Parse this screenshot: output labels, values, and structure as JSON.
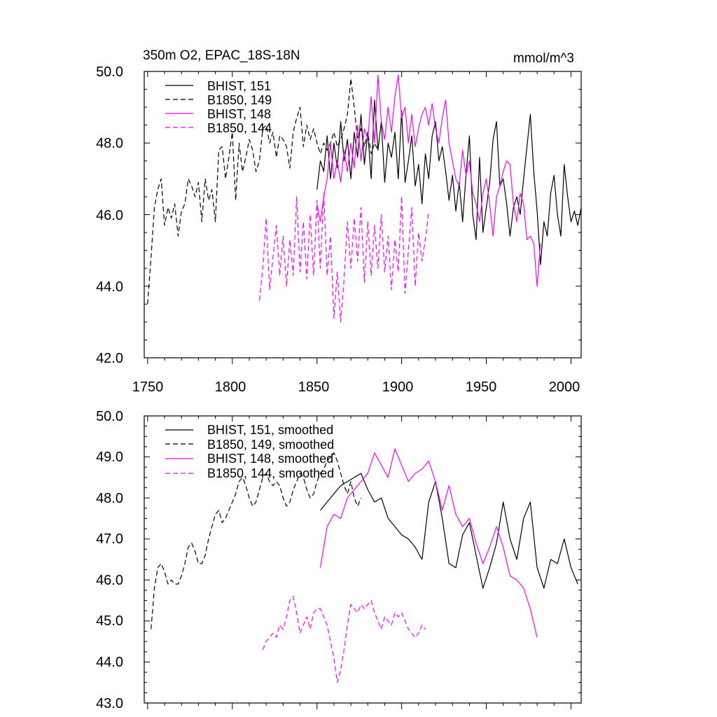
{
  "charts": [
    {
      "id": "top",
      "title_left": "350m O2, EPAC_18S-18N",
      "title_right": "mmol/m^3",
      "yticks": [
        "42.0",
        "44.0",
        "46.0",
        "48.0",
        "50.0"
      ],
      "xticks": [
        "1750",
        "1800",
        "1850",
        "1900",
        "1950",
        "2000"
      ],
      "legend": [
        "BHIST, 151",
        "B1850, 149",
        "BHIST, 148",
        "B1850, 144"
      ]
    },
    {
      "id": "bottom",
      "title_left": "",
      "title_right": "",
      "yticks": [
        "43.0",
        "44.0",
        "45.0",
        "46.0",
        "47.0",
        "48.0",
        "49.0",
        "50.0"
      ],
      "xticks": [],
      "legend": [
        "BHIST, 151, smoothed",
        "B1850, 149, smoothed",
        "BHIST, 148, smoothed",
        "B1850, 144, smoothed"
      ]
    }
  ],
  "chart_data": [
    {
      "type": "line",
      "title": "350m O2, EPAC_18S-18N",
      "ylabel_units": "mmol/m^3",
      "xlim": [
        1748,
        2006
      ],
      "ylim": [
        42.0,
        50.0
      ],
      "grid": false,
      "legend_position": "top-left",
      "series": [
        {
          "name": "BHIST, 151",
          "color": "#000000",
          "dash": "solid",
          "x": [
            1850,
            1852,
            1854,
            1856,
            1858,
            1860,
            1862,
            1864,
            1866,
            1868,
            1870,
            1872,
            1874,
            1876,
            1878,
            1880,
            1882,
            1884,
            1886,
            1888,
            1890,
            1892,
            1894,
            1896,
            1898,
            1900,
            1902,
            1904,
            1906,
            1908,
            1910,
            1912,
            1914,
            1916,
            1918,
            1920,
            1922,
            1924,
            1926,
            1928,
            1930,
            1932,
            1934,
            1936,
            1938,
            1940,
            1942,
            1944,
            1946,
            1948,
            1950,
            1952,
            1954,
            1956,
            1958,
            1960,
            1962,
            1964,
            1966,
            1968,
            1970,
            1972,
            1974,
            1976,
            1978,
            1980,
            1982,
            1984,
            1986,
            1988,
            1990,
            1992,
            1994,
            1996,
            1998,
            2000,
            2002,
            2004,
            2006
          ],
          "y": [
            46.7,
            47.5,
            47.2,
            48.2,
            47.0,
            48.0,
            47.3,
            48.6,
            47.5,
            48.1,
            47.0,
            48.3,
            47.6,
            48.8,
            47.4,
            48.3,
            47.0,
            49.2,
            47.8,
            48.6,
            46.9,
            48.0,
            47.6,
            48.3,
            47.0,
            48.9,
            46.9,
            47.5,
            48.2,
            46.8,
            47.4,
            46.3,
            47.7,
            47.0,
            48.2,
            48.6,
            47.5,
            47.9,
            47.2,
            46.4,
            47.1,
            46.1,
            46.9,
            45.8,
            47.1,
            48.2,
            46.0,
            45.3,
            47.6,
            45.5,
            46.2,
            46.9,
            48.1,
            48.6,
            46.8,
            47.0,
            46.3,
            45.4,
            46.2,
            46.5,
            46.0,
            47.0,
            47.9,
            48.8,
            47.2,
            46.1,
            44.6,
            45.8,
            45.4,
            46.6,
            47.1,
            46.0,
            45.4,
            47.4,
            46.5,
            45.8,
            46.1,
            45.7,
            46.2
          ]
        },
        {
          "name": "B1850, 149",
          "color": "#000000",
          "dash": "dashed",
          "x": [
            1750,
            1752,
            1754,
            1756,
            1758,
            1760,
            1762,
            1764,
            1766,
            1768,
            1770,
            1772,
            1774,
            1776,
            1778,
            1780,
            1782,
            1784,
            1786,
            1788,
            1790,
            1792,
            1794,
            1796,
            1798,
            1800,
            1802,
            1804,
            1806,
            1808,
            1810,
            1812,
            1814,
            1816,
            1818,
            1820,
            1822,
            1824,
            1826,
            1828,
            1830,
            1832,
            1834,
            1836,
            1838,
            1840,
            1842,
            1844,
            1846,
            1848,
            1850,
            1852,
            1854,
            1856,
            1858,
            1860,
            1862,
            1864,
            1866,
            1868,
            1870,
            1872,
            1874,
            1876,
            1878,
            1880,
            1882,
            1884,
            1886
          ],
          "y": [
            43.5,
            44.8,
            46.2,
            46.7,
            47.0,
            45.7,
            46.2,
            45.9,
            46.3,
            45.4,
            46.1,
            46.3,
            47.0,
            46.8,
            46.5,
            46.9,
            45.8,
            47.0,
            46.4,
            46.7,
            45.8,
            47.8,
            47.9,
            47.0,
            47.6,
            48.3,
            46.4,
            48.0,
            47.2,
            47.6,
            48.1,
            47.8,
            47.2,
            47.5,
            48.4,
            48.5,
            48.0,
            48.3,
            47.6,
            48.2,
            48.1,
            47.9,
            47.3,
            48.3,
            48.7,
            49.0,
            47.9,
            48.5,
            48.1,
            48.4,
            48.0,
            47.7,
            48.0,
            47.8,
            48.0,
            48.3,
            47.9,
            48.1,
            48.4,
            48.8,
            49.8,
            49.0,
            48.1,
            48.4,
            47.9,
            48.3,
            47.7,
            48.0,
            47.8
          ]
        },
        {
          "name": "BHIST, 148",
          "color": "#ff00ff",
          "dash": "solid",
          "x": [
            1850,
            1852,
            1854,
            1856,
            1858,
            1860,
            1862,
            1864,
            1866,
            1868,
            1870,
            1872,
            1874,
            1876,
            1878,
            1880,
            1882,
            1884,
            1886,
            1888,
            1890,
            1892,
            1894,
            1896,
            1898,
            1900,
            1902,
            1904,
            1906,
            1908,
            1910,
            1912,
            1914,
            1916,
            1918,
            1920,
            1922,
            1924,
            1926,
            1928,
            1930,
            1932,
            1934,
            1936,
            1938,
            1940,
            1942,
            1944,
            1946,
            1948,
            1950,
            1952,
            1954,
            1956,
            1958,
            1960,
            1962,
            1964,
            1966,
            1968,
            1970,
            1972,
            1974,
            1976,
            1978,
            1980,
            1982
          ],
          "y": [
            46.3,
            45.8,
            46.5,
            47.0,
            48.0,
            47.0,
            47.5,
            46.9,
            47.8,
            47.2,
            48.0,
            47.3,
            48.5,
            47.5,
            48.4,
            48.1,
            49.3,
            48.0,
            49.9,
            48.6,
            48.1,
            49.0,
            48.3,
            49.3,
            49.9,
            48.7,
            49.0,
            48.0,
            48.8,
            47.9,
            48.4,
            48.8,
            49.0,
            48.5,
            49.1,
            48.4,
            48.0,
            48.7,
            49.2,
            48.0,
            47.5,
            47.0,
            46.8,
            47.8,
            47.1,
            47.5,
            46.6,
            46.3,
            45.8,
            46.6,
            47.0,
            46.3,
            45.4,
            46.5,
            46.8,
            47.2,
            47.5,
            47.4,
            46.3,
            45.8,
            46.6,
            46.3,
            45.3,
            45.4,
            45.2,
            44.0,
            45.2
          ]
        },
        {
          "name": "B1850, 144",
          "color": "#ff00ff",
          "dash": "dashed",
          "x": [
            1816,
            1818,
            1820,
            1822,
            1824,
            1826,
            1828,
            1830,
            1832,
            1834,
            1836,
            1838,
            1840,
            1842,
            1844,
            1846,
            1848,
            1850,
            1852,
            1854,
            1856,
            1858,
            1860,
            1862,
            1864,
            1866,
            1868,
            1870,
            1872,
            1874,
            1876,
            1878,
            1880,
            1882,
            1884,
            1886,
            1888,
            1890,
            1892,
            1894,
            1896,
            1898,
            1900,
            1902,
            1904,
            1906,
            1908,
            1910,
            1912,
            1914,
            1916
          ],
          "y": [
            43.6,
            44.5,
            45.9,
            43.9,
            44.8,
            45.7,
            44.3,
            45.4,
            44.0,
            45.3,
            44.3,
            46.5,
            44.4,
            45.8,
            44.2,
            46.0,
            44.3,
            46.4,
            44.5,
            46.6,
            44.3,
            45.4,
            43.1,
            44.4,
            43.0,
            44.2,
            45.8,
            44.5,
            45.9,
            44.7,
            46.2,
            44.1,
            45.8,
            44.3,
            45.7,
            44.5,
            46.0,
            44.4,
            45.4,
            43.9,
            45.3,
            44.4,
            46.5,
            43.8,
            45.0,
            46.2,
            44.0,
            45.5,
            44.7,
            45.3,
            46.1
          ]
        }
      ]
    },
    {
      "type": "line",
      "title": "",
      "xlim": [
        1748,
        2006
      ],
      "ylim": [
        43.0,
        50.0
      ],
      "grid": false,
      "legend_position": "top-left",
      "series": [
        {
          "name": "BHIST, 151, smoothed",
          "color": "#000000",
          "dash": "solid",
          "x": [
            1852,
            1856,
            1860,
            1864,
            1868,
            1872,
            1876,
            1880,
            1884,
            1888,
            1892,
            1896,
            1900,
            1904,
            1908,
            1912,
            1916,
            1920,
            1924,
            1928,
            1932,
            1936,
            1940,
            1944,
            1948,
            1952,
            1956,
            1960,
            1964,
            1968,
            1972,
            1976,
            1980,
            1984,
            1988,
            1992,
            1996,
            2000,
            2004
          ],
          "y": [
            47.7,
            47.9,
            48.1,
            48.3,
            48.4,
            48.5,
            48.6,
            48.2,
            47.9,
            48.0,
            47.5,
            47.3,
            47.1,
            47.0,
            46.8,
            46.5,
            47.9,
            48.4,
            47.5,
            46.4,
            46.3,
            47.1,
            47.4,
            46.6,
            45.8,
            46.3,
            46.9,
            47.9,
            47.0,
            46.5,
            47.5,
            47.9,
            46.3,
            45.8,
            46.5,
            46.4,
            47.0,
            46.3,
            45.9
          ]
        },
        {
          "name": "B1850, 149, smoothed",
          "color": "#000000",
          "dash": "dashed",
          "x": [
            1752,
            1754,
            1756,
            1758,
            1760,
            1762,
            1764,
            1766,
            1768,
            1770,
            1772,
            1774,
            1776,
            1778,
            1780,
            1782,
            1784,
            1786,
            1788,
            1790,
            1792,
            1794,
            1796,
            1798,
            1800,
            1802,
            1804,
            1806,
            1808,
            1810,
            1812,
            1814,
            1816,
            1818,
            1820,
            1822,
            1824,
            1826,
            1828,
            1830,
            1832,
            1834,
            1836,
            1838,
            1840,
            1842,
            1844,
            1846,
            1848,
            1850,
            1852,
            1854,
            1856,
            1858,
            1860,
            1862,
            1864,
            1866,
            1868,
            1870,
            1872,
            1874,
            1876
          ],
          "y": [
            44.8,
            45.8,
            46.3,
            46.4,
            46.2,
            45.9,
            46.0,
            45.9,
            45.9,
            46.1,
            46.4,
            46.8,
            46.9,
            46.7,
            46.4,
            46.4,
            46.6,
            47.0,
            47.3,
            47.6,
            47.7,
            47.4,
            47.5,
            47.7,
            47.9,
            48.1,
            48.4,
            48.5,
            48.3,
            48.0,
            47.8,
            47.9,
            48.2,
            48.5,
            48.6,
            48.4,
            48.3,
            48.4,
            48.3,
            48.0,
            47.8,
            47.9,
            48.2,
            48.4,
            48.6,
            48.5,
            48.2,
            48.0,
            48.1,
            48.4,
            48.6,
            48.7,
            48.9,
            49.0,
            49.1,
            48.9,
            48.6,
            48.3,
            48.1,
            48.4,
            48.0,
            47.8,
            48.0
          ]
        },
        {
          "name": "BHIST, 148, smoothed",
          "color": "#ff00ff",
          "dash": "solid",
          "x": [
            1852,
            1856,
            1860,
            1864,
            1868,
            1872,
            1876,
            1880,
            1884,
            1888,
            1892,
            1896,
            1900,
            1904,
            1908,
            1912,
            1916,
            1920,
            1924,
            1928,
            1932,
            1936,
            1940,
            1944,
            1948,
            1952,
            1956,
            1960,
            1964,
            1968,
            1972,
            1976,
            1980
          ],
          "y": [
            46.3,
            47.3,
            47.6,
            47.5,
            48.0,
            48.2,
            48.4,
            48.6,
            49.1,
            48.8,
            48.5,
            49.2,
            48.8,
            48.4,
            48.6,
            48.7,
            48.9,
            48.4,
            47.7,
            48.3,
            47.6,
            47.3,
            47.5,
            46.9,
            46.4,
            46.8,
            47.3,
            46.8,
            46.1,
            46.0,
            45.8,
            45.3,
            44.6
          ]
        },
        {
          "name": "B1850, 144, smoothed",
          "color": "#ff00ff",
          "dash": "dashed",
          "x": [
            1818,
            1820,
            1822,
            1824,
            1826,
            1828,
            1830,
            1832,
            1834,
            1836,
            1838,
            1840,
            1842,
            1844,
            1846,
            1848,
            1850,
            1852,
            1854,
            1856,
            1858,
            1860,
            1862,
            1864,
            1866,
            1868,
            1870,
            1872,
            1874,
            1876,
            1878,
            1880,
            1882,
            1884,
            1886,
            1888,
            1890,
            1892,
            1894,
            1896,
            1898,
            1900,
            1902,
            1904,
            1906,
            1908,
            1910,
            1912,
            1914
          ],
          "y": [
            44.3,
            44.5,
            44.6,
            44.7,
            44.6,
            44.9,
            44.8,
            45.1,
            45.5,
            45.6,
            45.2,
            44.7,
            44.9,
            45.1,
            44.8,
            45.2,
            45.3,
            45.3,
            45.1,
            44.9,
            44.5,
            44.1,
            43.5,
            43.8,
            44.3,
            44.9,
            45.4,
            45.3,
            45.2,
            45.4,
            45.3,
            45.4,
            45.5,
            45.2,
            45.0,
            44.8,
            45.1,
            45.0,
            44.9,
            45.2,
            45.1,
            45.2,
            45.0,
            44.8,
            44.7,
            44.6,
            44.7,
            44.9,
            44.8
          ]
        }
      ]
    }
  ]
}
